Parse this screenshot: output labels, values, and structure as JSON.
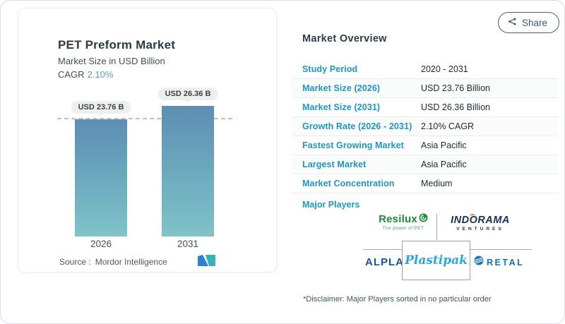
{
  "share": {
    "label": "Share"
  },
  "left_card": {
    "title": "PET Preform Market",
    "subtitle": "Market Size in USD Billion",
    "cagr_label": "CAGR",
    "cagr_value": "2.10%",
    "source_label": "Source :",
    "source_brand": "Mordor Intelligence"
  },
  "chart_data": {
    "type": "bar",
    "title": "PET Preform Market",
    "subtitle": "Market Size in USD Billion",
    "categories": [
      "2026",
      "2031"
    ],
    "values": [
      23.76,
      26.36
    ],
    "value_labels": [
      "USD 23.76 B",
      "USD 26.36 B"
    ],
    "unit": "USD Billion",
    "cagr": "2.10%",
    "ylim": [
      0,
      26.36
    ],
    "reference_line": 23.76,
    "grid": false,
    "bar_gradient_top": "#5d8eb3",
    "bar_gradient_bottom": "#80c3c9"
  },
  "overview": {
    "heading": "Market Overview",
    "rows": [
      {
        "label": "Study Period",
        "value": "2020 - 2031"
      },
      {
        "label": "Market Size (2026)",
        "value": "USD 23.76 Billion"
      },
      {
        "label": "Market Size (2031)",
        "value": "USD 26.36 Billion"
      },
      {
        "label": "Growth Rate (2026 - 2031)",
        "value": "2.10% CAGR"
      },
      {
        "label": "Fastest Growing Market",
        "value": "Asia Pacific"
      },
      {
        "label": "Largest Market",
        "value": "Asia Pacific"
      },
      {
        "label": "Market Concentration",
        "value": "Medium"
      }
    ],
    "major_players_label": "Major Players",
    "disclaimer": "*Disclaimer: Major Players sorted in no particular order"
  },
  "logos": {
    "resilux": {
      "name": "Resilux",
      "tagline": "The power of PET"
    },
    "indorama": {
      "pre": "IND",
      "o": "O",
      "post": "RAMA",
      "sub": "VENTURES"
    },
    "alpla": {
      "name": "ALPLA"
    },
    "plastipak": {
      "name": "Plastipak"
    },
    "retal": {
      "name": "RETAL"
    }
  },
  "colors": {
    "overview_label_blue": "#1e96c8",
    "cagr_blue": "#5b9bc9",
    "bar_top": "#5d8eb3",
    "bar_bottom": "#80c3c9",
    "resilux_green": "#1e8a3a",
    "indorama_navy": "#1f2d5a",
    "indorama_orange": "#f58220",
    "alpla_blue": "#15549e",
    "plastipak_blue": "#2aa6de",
    "retal_blue": "#1272b8",
    "share_slate": "#3c5a6e"
  }
}
